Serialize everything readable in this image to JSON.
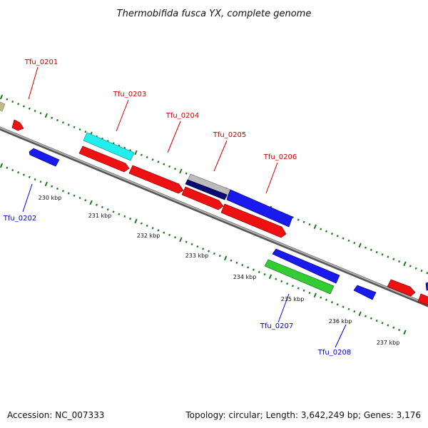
{
  "title": "Thermobifida fusca YX, complete genome",
  "footer": {
    "accession": "Accession: NC_007333",
    "summary": "Topology: circular; Length: 3,642,249 bp; Genes: 3,176"
  },
  "colors": {
    "background": "#ffffff",
    "backbone": "#888888",
    "tick": "#1e7a1e",
    "label_forward": "#cc0000",
    "label_reverse": "#0000cc",
    "feature_red": "#ee1111",
    "feature_blue": "#1a1aee",
    "feature_cyan": "#22eeee",
    "feature_green": "#33cc33",
    "feature_navy": "#0a0a77",
    "feature_grey": "#bbbbbb",
    "feature_olive": "#bdb98a"
  },
  "kbp_labels": [
    "230 kbp",
    "231 kbp",
    "232 kbp",
    "233 kbp",
    "234 kbp",
    "235 kbp",
    "236 kbp",
    "237 kbp"
  ],
  "gene_labels": [
    {
      "text": "Tfu_0201",
      "strand": "forward"
    },
    {
      "text": "Tfu_0202",
      "strand": "reverse"
    },
    {
      "text": "Tfu_0203",
      "strand": "forward"
    },
    {
      "text": "Tfu_0204",
      "strand": "forward"
    },
    {
      "text": "Tfu_0205",
      "strand": "forward"
    },
    {
      "text": "Tfu_0206",
      "strand": "forward"
    },
    {
      "text": "Tfu_0207",
      "strand": "reverse"
    },
    {
      "text": "Tfu_0208",
      "strand": "reverse"
    }
  ]
}
